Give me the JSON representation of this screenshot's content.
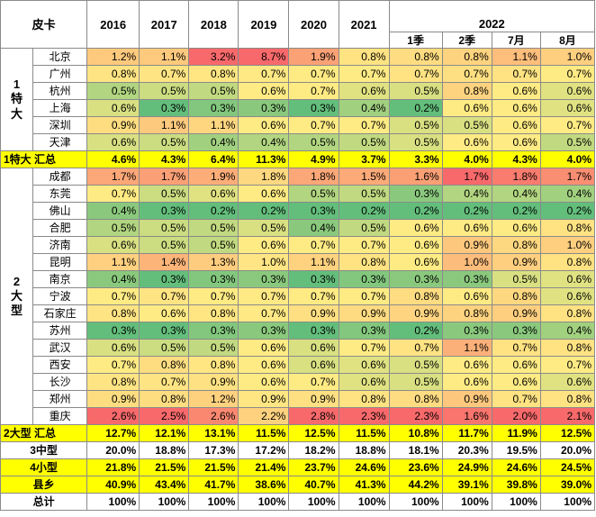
{
  "header": {
    "corner": "皮卡",
    "years": [
      "2016",
      "2017",
      "2018",
      "2019",
      "2020",
      "2021"
    ],
    "year_2022": "2022",
    "sub_2022": [
      "1季",
      "2季",
      "7月",
      "8月"
    ]
  },
  "groups": [
    {
      "label": "1\n特\n大",
      "rows": [
        {
          "city": "北京",
          "values": [
            "1.2%",
            "1.1%",
            "3.2%",
            "8.7%",
            "1.9%",
            "0.8%",
            "0.8%",
            "0.8%",
            "1.1%",
            "1.0%"
          ]
        },
        {
          "city": "广州",
          "values": [
            "0.8%",
            "0.7%",
            "0.8%",
            "0.7%",
            "0.7%",
            "0.7%",
            "0.7%",
            "0.7%",
            "0.7%",
            "0.7%"
          ]
        },
        {
          "city": "杭州",
          "values": [
            "0.5%",
            "0.5%",
            "0.5%",
            "0.6%",
            "0.7%",
            "0.6%",
            "0.5%",
            "0.8%",
            "0.6%",
            "0.6%"
          ]
        },
        {
          "city": "上海",
          "values": [
            "0.6%",
            "0.3%",
            "0.3%",
            "0.3%",
            "0.3%",
            "0.4%",
            "0.2%",
            "0.6%",
            "0.6%",
            "0.6%"
          ]
        },
        {
          "city": "深圳",
          "values": [
            "0.9%",
            "1.1%",
            "1.1%",
            "0.6%",
            "0.7%",
            "0.7%",
            "0.5%",
            "0.5%",
            "0.6%",
            "0.7%"
          ]
        },
        {
          "city": "天津",
          "values": [
            "0.6%",
            "0.5%",
            "0.4%",
            "0.4%",
            "0.5%",
            "0.5%",
            "0.5%",
            "0.6%",
            "0.6%",
            "0.5%"
          ]
        }
      ],
      "summary": {
        "label": "1特大 汇总",
        "values": [
          "4.6%",
          "4.3%",
          "6.4%",
          "11.3%",
          "4.9%",
          "3.7%",
          "3.3%",
          "4.0%",
          "4.3%",
          "4.0%"
        ]
      }
    },
    {
      "label": "2\n大\n型",
      "rows": [
        {
          "city": "成都",
          "values": [
            "1.7%",
            "1.7%",
            "1.9%",
            "1.8%",
            "1.8%",
            "1.5%",
            "1.6%",
            "1.7%",
            "1.8%",
            "1.7%"
          ]
        },
        {
          "city": "东莞",
          "values": [
            "0.7%",
            "0.5%",
            "0.6%",
            "0.6%",
            "0.5%",
            "0.5%",
            "0.3%",
            "0.4%",
            "0.4%",
            "0.4%"
          ]
        },
        {
          "city": "佛山",
          "values": [
            "0.4%",
            "0.3%",
            "0.2%",
            "0.2%",
            "0.3%",
            "0.2%",
            "0.2%",
            "0.2%",
            "0.2%",
            "0.2%"
          ]
        },
        {
          "city": "合肥",
          "values": [
            "0.5%",
            "0.5%",
            "0.5%",
            "0.5%",
            "0.4%",
            "0.5%",
            "0.6%",
            "0.6%",
            "0.6%",
            "0.8%"
          ]
        },
        {
          "city": "济南",
          "values": [
            "0.6%",
            "0.5%",
            "0.5%",
            "0.6%",
            "0.7%",
            "0.7%",
            "0.6%",
            "0.9%",
            "0.8%",
            "1.0%"
          ]
        },
        {
          "city": "昆明",
          "values": [
            "1.1%",
            "1.4%",
            "1.3%",
            "1.0%",
            "1.1%",
            "0.8%",
            "0.6%",
            "1.0%",
            "0.9%",
            "0.8%"
          ]
        },
        {
          "city": "南京",
          "values": [
            "0.4%",
            "0.3%",
            "0.3%",
            "0.3%",
            "0.3%",
            "0.3%",
            "0.3%",
            "0.3%",
            "0.5%",
            "0.6%"
          ]
        },
        {
          "city": "宁波",
          "values": [
            "0.7%",
            "0.7%",
            "0.7%",
            "0.7%",
            "0.7%",
            "0.7%",
            "0.8%",
            "0.6%",
            "0.8%",
            "0.6%"
          ]
        },
        {
          "city": "石家庄",
          "values": [
            "0.8%",
            "0.6%",
            "0.8%",
            "0.7%",
            "0.9%",
            "0.9%",
            "0.9%",
            "0.8%",
            "0.9%",
            "0.8%"
          ]
        },
        {
          "city": "苏州",
          "values": [
            "0.3%",
            "0.3%",
            "0.3%",
            "0.3%",
            "0.3%",
            "0.3%",
            "0.2%",
            "0.3%",
            "0.3%",
            "0.4%"
          ]
        },
        {
          "city": "武汉",
          "values": [
            "0.6%",
            "0.5%",
            "0.5%",
            "0.6%",
            "0.6%",
            "0.7%",
            "0.7%",
            "1.1%",
            "0.7%",
            "0.8%"
          ]
        },
        {
          "city": "西安",
          "values": [
            "0.7%",
            "0.8%",
            "0.8%",
            "0.6%",
            "0.6%",
            "0.6%",
            "0.5%",
            "0.6%",
            "0.6%",
            "0.7%"
          ]
        },
        {
          "city": "长沙",
          "values": [
            "0.8%",
            "0.7%",
            "0.9%",
            "0.6%",
            "0.7%",
            "0.6%",
            "0.5%",
            "0.6%",
            "0.6%",
            "0.6%"
          ]
        },
        {
          "city": "郑州",
          "values": [
            "0.9%",
            "0.8%",
            "1.2%",
            "0.9%",
            "0.9%",
            "0.8%",
            "0.8%",
            "0.9%",
            "0.7%",
            "0.8%"
          ]
        },
        {
          "city": "重庆",
          "values": [
            "2.6%",
            "2.5%",
            "2.6%",
            "2.2%",
            "2.8%",
            "2.3%",
            "2.3%",
            "1.6%",
            "2.0%",
            "2.1%"
          ]
        }
      ],
      "summary": {
        "label": "2大型 汇总",
        "values": [
          "12.7%",
          "12.1%",
          "13.1%",
          "11.5%",
          "12.5%",
          "11.5%",
          "10.8%",
          "11.7%",
          "11.9%",
          "12.5%"
        ]
      }
    }
  ],
  "totals": [
    {
      "label": "3中型",
      "style": "white",
      "values": [
        "20.0%",
        "18.8%",
        "17.3%",
        "17.2%",
        "18.2%",
        "18.8%",
        "18.1%",
        "20.3%",
        "19.5%",
        "20.0%"
      ]
    },
    {
      "label": "4小型",
      "style": "yellow",
      "values": [
        "21.8%",
        "21.5%",
        "21.5%",
        "21.4%",
        "23.7%",
        "24.6%",
        "23.6%",
        "24.9%",
        "24.6%",
        "24.5%"
      ]
    },
    {
      "label": "县乡",
      "style": "yellow",
      "values": [
        "40.9%",
        "43.4%",
        "41.7%",
        "38.6%",
        "40.7%",
        "41.3%",
        "44.2%",
        "39.1%",
        "39.8%",
        "39.0%"
      ]
    },
    {
      "label": "总计",
      "style": "white",
      "values": [
        "100%",
        "100%",
        "100%",
        "100%",
        "100%",
        "100%",
        "100%",
        "100%",
        "100%",
        "100%"
      ]
    }
  ],
  "colors": {
    "summary_yellow": "#ffff00",
    "scale_low": "#63be7b",
    "scale_mid": "#ffeb84",
    "scale_high": "#f8696b"
  }
}
